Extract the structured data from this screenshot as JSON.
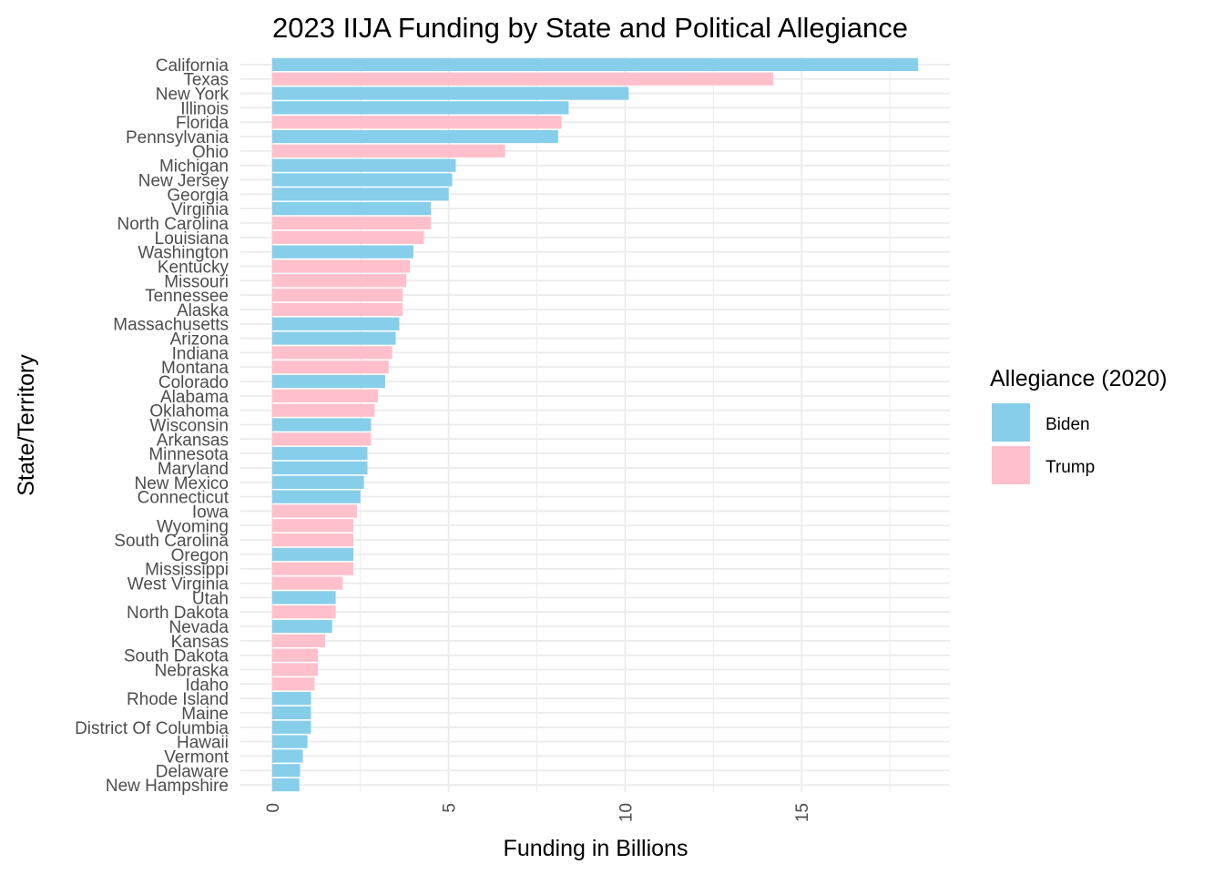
{
  "chart_data": {
    "type": "bar",
    "orientation": "horizontal",
    "title": "2023 IIJA Funding by State and Political Allegiance",
    "xlabel": "Funding in Billions",
    "ylabel": "State/Territory",
    "xlim": [
      -0.9,
      19.2
    ],
    "x_ticks": [
      0,
      5,
      10,
      15
    ],
    "grid": true,
    "legend": {
      "title": "Allegiance (2020)",
      "placement": "right",
      "entries": [
        {
          "name": "Biden",
          "color": "#87CEEB"
        },
        {
          "name": "Trump",
          "color": "#FFC0CB"
        }
      ]
    },
    "bars": [
      {
        "state": "California",
        "value": 18.3,
        "allegiance": "Biden"
      },
      {
        "state": "Texas",
        "value": 14.2,
        "allegiance": "Trump"
      },
      {
        "state": "New York",
        "value": 10.1,
        "allegiance": "Biden"
      },
      {
        "state": "Illinois",
        "value": 8.4,
        "allegiance": "Biden"
      },
      {
        "state": "Florida",
        "value": 8.2,
        "allegiance": "Trump"
      },
      {
        "state": "Pennsylvania",
        "value": 8.1,
        "allegiance": "Biden"
      },
      {
        "state": "Ohio",
        "value": 6.6,
        "allegiance": "Trump"
      },
      {
        "state": "Michigan",
        "value": 5.2,
        "allegiance": "Biden"
      },
      {
        "state": "New Jersey",
        "value": 5.1,
        "allegiance": "Biden"
      },
      {
        "state": "Georgia",
        "value": 5.0,
        "allegiance": "Biden"
      },
      {
        "state": "Virginia",
        "value": 4.5,
        "allegiance": "Biden"
      },
      {
        "state": "North Carolina",
        "value": 4.5,
        "allegiance": "Trump"
      },
      {
        "state": "Louisiana",
        "value": 4.3,
        "allegiance": "Trump"
      },
      {
        "state": "Washington",
        "value": 4.0,
        "allegiance": "Biden"
      },
      {
        "state": "Kentucky",
        "value": 3.9,
        "allegiance": "Trump"
      },
      {
        "state": "Missouri",
        "value": 3.8,
        "allegiance": "Trump"
      },
      {
        "state": "Tennessee",
        "value": 3.7,
        "allegiance": "Trump"
      },
      {
        "state": "Alaska",
        "value": 3.7,
        "allegiance": "Trump"
      },
      {
        "state": "Massachusetts",
        "value": 3.6,
        "allegiance": "Biden"
      },
      {
        "state": "Arizona",
        "value": 3.5,
        "allegiance": "Biden"
      },
      {
        "state": "Indiana",
        "value": 3.4,
        "allegiance": "Trump"
      },
      {
        "state": "Montana",
        "value": 3.3,
        "allegiance": "Trump"
      },
      {
        "state": "Colorado",
        "value": 3.2,
        "allegiance": "Biden"
      },
      {
        "state": "Alabama",
        "value": 3.0,
        "allegiance": "Trump"
      },
      {
        "state": "Oklahoma",
        "value": 2.9,
        "allegiance": "Trump"
      },
      {
        "state": "Wisconsin",
        "value": 2.8,
        "allegiance": "Biden"
      },
      {
        "state": "Arkansas",
        "value": 2.8,
        "allegiance": "Trump"
      },
      {
        "state": "Minnesota",
        "value": 2.7,
        "allegiance": "Biden"
      },
      {
        "state": "Maryland",
        "value": 2.7,
        "allegiance": "Biden"
      },
      {
        "state": "New Mexico",
        "value": 2.6,
        "allegiance": "Biden"
      },
      {
        "state": "Connecticut",
        "value": 2.5,
        "allegiance": "Biden"
      },
      {
        "state": "Iowa",
        "value": 2.4,
        "allegiance": "Trump"
      },
      {
        "state": "Wyoming",
        "value": 2.3,
        "allegiance": "Trump"
      },
      {
        "state": "South Carolina",
        "value": 2.3,
        "allegiance": "Trump"
      },
      {
        "state": "Oregon",
        "value": 2.3,
        "allegiance": "Biden"
      },
      {
        "state": "Mississippi",
        "value": 2.3,
        "allegiance": "Trump"
      },
      {
        "state": "West Virginia",
        "value": 2.0,
        "allegiance": "Trump"
      },
      {
        "state": "Utah",
        "value": 1.8,
        "allegiance": "Biden"
      },
      {
        "state": "North Dakota",
        "value": 1.8,
        "allegiance": "Trump"
      },
      {
        "state": "Nevada",
        "value": 1.7,
        "allegiance": "Biden"
      },
      {
        "state": "Kansas",
        "value": 1.5,
        "allegiance": "Trump"
      },
      {
        "state": "South Dakota",
        "value": 1.3,
        "allegiance": "Trump"
      },
      {
        "state": "Nebraska",
        "value": 1.3,
        "allegiance": "Trump"
      },
      {
        "state": "Idaho",
        "value": 1.2,
        "allegiance": "Trump"
      },
      {
        "state": "Rhode Island",
        "value": 1.1,
        "allegiance": "Biden"
      },
      {
        "state": "Maine",
        "value": 1.1,
        "allegiance": "Biden"
      },
      {
        "state": "District Of Columbia",
        "value": 1.1,
        "allegiance": "Biden"
      },
      {
        "state": "Hawaii",
        "value": 1.0,
        "allegiance": "Biden"
      },
      {
        "state": "Vermont",
        "value": 0.87,
        "allegiance": "Biden"
      },
      {
        "state": "Delaware",
        "value": 0.79,
        "allegiance": "Biden"
      },
      {
        "state": "New Hampshire",
        "value": 0.77,
        "allegiance": "Biden"
      }
    ]
  }
}
